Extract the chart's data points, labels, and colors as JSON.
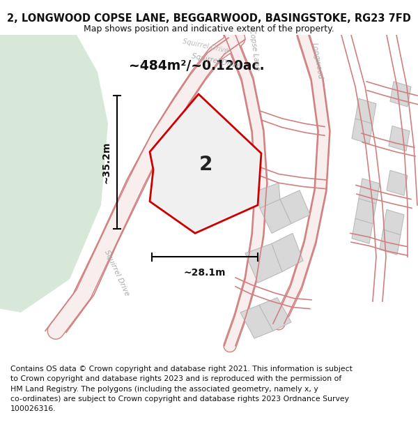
{
  "title": "2, LONGWOOD COPSE LANE, BEGGARWOOD, BASINGSTOKE, RG23 7FD",
  "subtitle": "Map shows position and indicative extent of the property.",
  "area_text": "~484m²/~0.120ac.",
  "width_label": "~28.1m",
  "height_label": "~35.2m",
  "plot_label": "2",
  "footer": "Contains OS data © Crown copyright and database right 2021. This information is subject\nto Crown copyright and database rights 2023 and is reproduced with the permission of\nHM Land Registry. The polygons (including the associated geometry, namely x, y\nco-ordinates) are subject to Crown copyright and database rights 2023 Ordnance Survey\n100026316.",
  "title_fontsize": 10.5,
  "subtitle_fontsize": 9,
  "footer_fontsize": 7.8,
  "plot_edge": "#cc0000",
  "road_edge": "#d08080",
  "road_fill": "#f0c8c8",
  "green_color": "#d8e8d8",
  "gray_plot": "#d8d8d8",
  "gray_plot_edge": "#bbbbbb"
}
